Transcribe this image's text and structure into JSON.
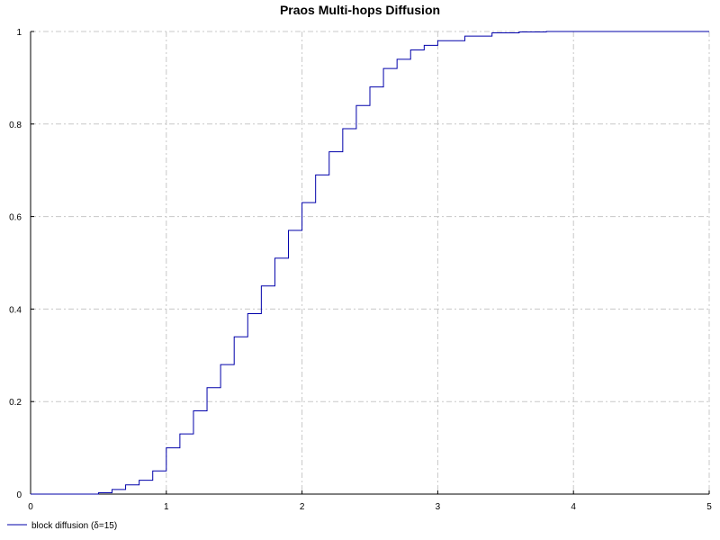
{
  "chart_data": {
    "type": "line",
    "title": "Praos Multi-hops Diffusion",
    "xlabel": "",
    "ylabel": "",
    "xlim": [
      0,
      5
    ],
    "ylim": [
      0,
      1
    ],
    "x_ticks": [
      "0",
      "1",
      "2",
      "3",
      "4",
      "5"
    ],
    "y_ticks": [
      "0",
      "0.2",
      "0.4",
      "0.6",
      "0.8",
      "1"
    ],
    "grid": true,
    "legend_position": "bottom-left",
    "series": [
      {
        "name": "block diffusion (δ=15)",
        "color": "#0000aa",
        "style": "step",
        "points": [
          [
            0.0,
            0.0
          ],
          [
            0.45,
            0.0
          ],
          [
            0.5,
            0.003
          ],
          [
            0.6,
            0.01
          ],
          [
            0.7,
            0.02
          ],
          [
            0.8,
            0.03
          ],
          [
            0.9,
            0.05
          ],
          [
            1.0,
            0.1
          ],
          [
            1.1,
            0.13
          ],
          [
            1.2,
            0.18
          ],
          [
            1.3,
            0.23
          ],
          [
            1.4,
            0.28
          ],
          [
            1.5,
            0.34
          ],
          [
            1.6,
            0.39
          ],
          [
            1.7,
            0.45
          ],
          [
            1.8,
            0.51
          ],
          [
            1.9,
            0.57
          ],
          [
            2.0,
            0.63
          ],
          [
            2.1,
            0.69
          ],
          [
            2.2,
            0.74
          ],
          [
            2.3,
            0.79
          ],
          [
            2.4,
            0.84
          ],
          [
            2.5,
            0.88
          ],
          [
            2.6,
            0.92
          ],
          [
            2.7,
            0.94
          ],
          [
            2.8,
            0.96
          ],
          [
            2.9,
            0.97
          ],
          [
            3.0,
            0.98
          ],
          [
            3.2,
            0.99
          ],
          [
            3.4,
            0.997
          ],
          [
            3.6,
            0.999
          ],
          [
            3.8,
            1.0
          ],
          [
            4.0,
            1.0
          ],
          [
            5.0,
            1.0
          ]
        ]
      }
    ]
  }
}
